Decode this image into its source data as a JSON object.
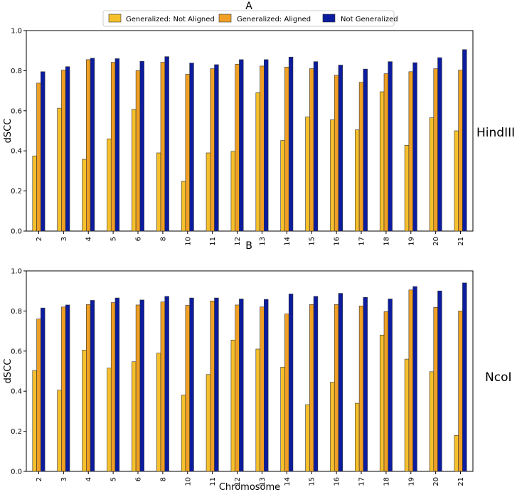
{
  "legend": {
    "entries": [
      {
        "label": "Generalized: Not Aligned",
        "color": "#F5C02C"
      },
      {
        "label": "Generalized: Aligned",
        "color": "#F0A024"
      },
      {
        "label": "Not Generalized",
        "color": "#0C1C9E"
      }
    ]
  },
  "xlabel": "Chromosome",
  "chart_data": [
    {
      "type": "bar",
      "title": "A",
      "side_label": "HindIII",
      "ylabel": "dSCC",
      "ylim": [
        0,
        1.0
      ],
      "yticks": [
        "0.0",
        "0.2",
        "0.4",
        "0.6",
        "0.8",
        "1.0"
      ],
      "grid": false,
      "legend_position": "top-center",
      "categories": [
        "2",
        "3",
        "4",
        "5",
        "6",
        "8",
        "10",
        "11",
        "12",
        "13",
        "14",
        "15",
        "16",
        "17",
        "18",
        "19",
        "20",
        "21"
      ],
      "series": [
        {
          "name": "Generalized: Not Aligned",
          "color": "#F5C02C",
          "values": [
            0.375,
            0.613,
            0.358,
            0.46,
            0.607,
            0.39,
            0.248,
            0.39,
            0.398,
            0.69,
            0.452,
            0.57,
            0.555,
            0.505,
            0.695,
            0.428,
            0.565,
            0.5
          ]
        },
        {
          "name": "Generalized: Aligned",
          "color": "#F0A024",
          "values": [
            0.738,
            0.803,
            0.855,
            0.842,
            0.8,
            0.842,
            0.782,
            0.81,
            0.832,
            0.823,
            0.818,
            0.81,
            0.777,
            0.742,
            0.785,
            0.795,
            0.81,
            0.803
          ]
        },
        {
          "name": "Not Generalized",
          "color": "#0C1C9E",
          "values": [
            0.795,
            0.82,
            0.862,
            0.86,
            0.847,
            0.87,
            0.838,
            0.83,
            0.855,
            0.855,
            0.868,
            0.845,
            0.828,
            0.808,
            0.845,
            0.84,
            0.865,
            0.905
          ]
        }
      ]
    },
    {
      "type": "bar",
      "title": "B",
      "side_label": "NcoI",
      "ylabel": "dSCC",
      "ylim": [
        0,
        1.0
      ],
      "yticks": [
        "0.0",
        "0.2",
        "0.4",
        "0.6",
        "0.8",
        "1.0"
      ],
      "grid": false,
      "categories": [
        "2",
        "3",
        "4",
        "5",
        "6",
        "8",
        "10",
        "11",
        "12",
        "13",
        "14",
        "15",
        "16",
        "17",
        "18",
        "19",
        "20",
        "21"
      ],
      "series": [
        {
          "name": "Generalized: Not Aligned",
          "color": "#F5C02C",
          "values": [
            0.503,
            0.405,
            0.605,
            0.515,
            0.547,
            0.59,
            0.38,
            0.483,
            0.655,
            0.61,
            0.52,
            0.333,
            0.445,
            0.34,
            0.68,
            0.56,
            0.497,
            0.18
          ]
        },
        {
          "name": "Generalized: Aligned",
          "color": "#F0A024",
          "values": [
            0.76,
            0.82,
            0.832,
            0.842,
            0.83,
            0.845,
            0.828,
            0.85,
            0.83,
            0.82,
            0.785,
            0.832,
            0.832,
            0.825,
            0.797,
            0.905,
            0.818,
            0.8
          ]
        },
        {
          "name": "Not Generalized",
          "color": "#0C1C9E",
          "values": [
            0.815,
            0.83,
            0.853,
            0.865,
            0.855,
            0.873,
            0.865,
            0.865,
            0.86,
            0.858,
            0.885,
            0.873,
            0.888,
            0.868,
            0.86,
            0.922,
            0.9,
            0.94
          ]
        }
      ]
    }
  ]
}
